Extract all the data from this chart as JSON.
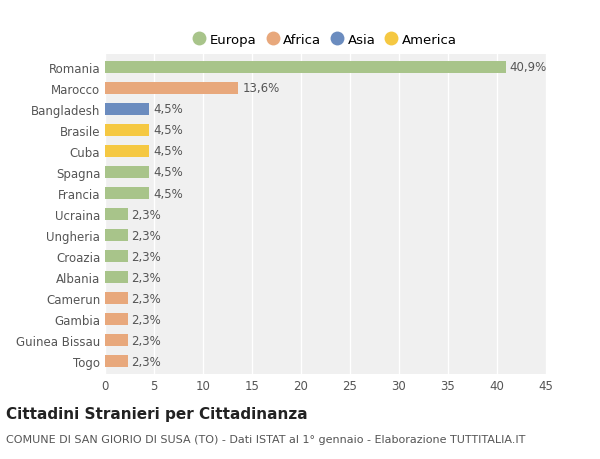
{
  "categories": [
    "Romania",
    "Marocco",
    "Bangladesh",
    "Brasile",
    "Cuba",
    "Spagna",
    "Francia",
    "Ucraina",
    "Ungheria",
    "Croazia",
    "Albania",
    "Camerun",
    "Gambia",
    "Guinea Bissau",
    "Togo"
  ],
  "values": [
    40.9,
    13.6,
    4.5,
    4.5,
    4.5,
    4.5,
    4.5,
    2.3,
    2.3,
    2.3,
    2.3,
    2.3,
    2.3,
    2.3,
    2.3
  ],
  "labels": [
    "40,9%",
    "13,6%",
    "4,5%",
    "4,5%",
    "4,5%",
    "4,5%",
    "4,5%",
    "2,3%",
    "2,3%",
    "2,3%",
    "2,3%",
    "2,3%",
    "2,3%",
    "2,3%",
    "2,3%"
  ],
  "colors": [
    "#a8c48a",
    "#e8a87c",
    "#6b8cbf",
    "#f5c842",
    "#f5c842",
    "#a8c48a",
    "#a8c48a",
    "#a8c48a",
    "#a8c48a",
    "#a8c48a",
    "#a8c48a",
    "#e8a87c",
    "#e8a87c",
    "#e8a87c",
    "#e8a87c"
  ],
  "legend_labels": [
    "Europa",
    "Africa",
    "Asia",
    "America"
  ],
  "legend_colors": [
    "#a8c48a",
    "#e8a87c",
    "#6b8cbf",
    "#f5c842"
  ],
  "title": "Cittadini Stranieri per Cittadinanza",
  "subtitle": "COMUNE DI SAN GIORIO DI SUSA (TO) - Dati ISTAT al 1° gennaio - Elaborazione TUTTITALIA.IT",
  "xlim": [
    0,
    45
  ],
  "xticks": [
    0,
    5,
    10,
    15,
    20,
    25,
    30,
    35,
    40,
    45
  ],
  "background_color": "#ffffff",
  "plot_bg_color": "#f0f0f0",
  "grid_color": "#ffffff",
  "bar_height": 0.55,
  "title_fontsize": 11,
  "subtitle_fontsize": 8,
  "tick_fontsize": 8.5,
  "label_fontsize": 8.5,
  "legend_fontsize": 9.5
}
